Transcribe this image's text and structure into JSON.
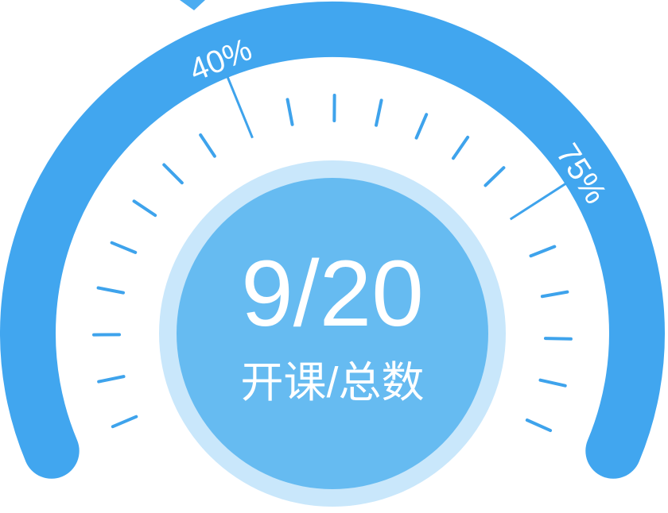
{
  "gauge": {
    "value_text": "9/20",
    "caption": "开课/总数",
    "markers": [
      {
        "label": "40%",
        "fraction": 0.4
      },
      {
        "label": "75%",
        "fraction": 0.75
      }
    ]
  },
  "colors": {
    "background": "#ffffff",
    "arc": "#41a6ef",
    "tick": "#3ea3ec",
    "pointer": "#4aacf1",
    "outer_ring": "#c9e7fb",
    "inner_disc": "#66bbf1",
    "text": "#ffffff"
  }
}
